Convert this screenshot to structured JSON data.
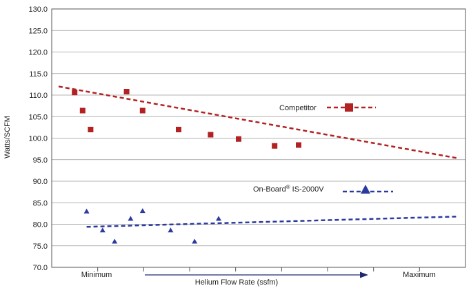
{
  "chart_data": {
    "type": "scatter",
    "xlabel": "Helium Flow Rate (ssfm)",
    "ylabel": "Watts/SCFM",
    "x_tick_labels": {
      "min": "Minimum",
      "max": "Maximum"
    },
    "x_range": [
      0,
      10
    ],
    "ylim": [
      70,
      130
    ],
    "y_ticks": [
      "70.0",
      "75.0",
      "80.0",
      "85.0",
      "90.0",
      "95.0",
      "100.0",
      "105.0",
      "110.0",
      "115.0",
      "120.0",
      "125.0",
      "130.0"
    ],
    "grid": true,
    "legend_placement": "inside-right",
    "series": [
      {
        "name": "Competitor",
        "color": "#b22222",
        "marker": "square",
        "points": [
          [
            0.4,
            110.6
          ],
          [
            0.6,
            106.4
          ],
          [
            0.8,
            102.0
          ],
          [
            1.7,
            110.8
          ],
          [
            2.1,
            106.4
          ],
          [
            3.0,
            102.0
          ],
          [
            3.8,
            100.8
          ],
          [
            4.5,
            99.8
          ],
          [
            5.4,
            98.2
          ],
          [
            6.0,
            98.4
          ]
        ],
        "trend": [
          [
            0.0,
            112.0
          ],
          [
            10.0,
            95.3
          ]
        ]
      },
      {
        "name": "On-Board® IS-2000V",
        "color": "#2b3a9e",
        "marker": "triangle",
        "points": [
          [
            0.7,
            83.0
          ],
          [
            1.1,
            78.6
          ],
          [
            1.4,
            76.0
          ],
          [
            1.8,
            81.3
          ],
          [
            2.1,
            83.1
          ],
          [
            2.8,
            78.6
          ],
          [
            3.4,
            76.0
          ],
          [
            4.0,
            81.3
          ]
        ],
        "trend": [
          [
            0.7,
            79.4
          ],
          [
            10.0,
            81.8
          ]
        ]
      }
    ]
  },
  "legend": {
    "competitor": "Competitor",
    "onboard_prefix": "On-Board",
    "onboard_reg": "®",
    "onboard_suffix": " IS-2000V"
  }
}
